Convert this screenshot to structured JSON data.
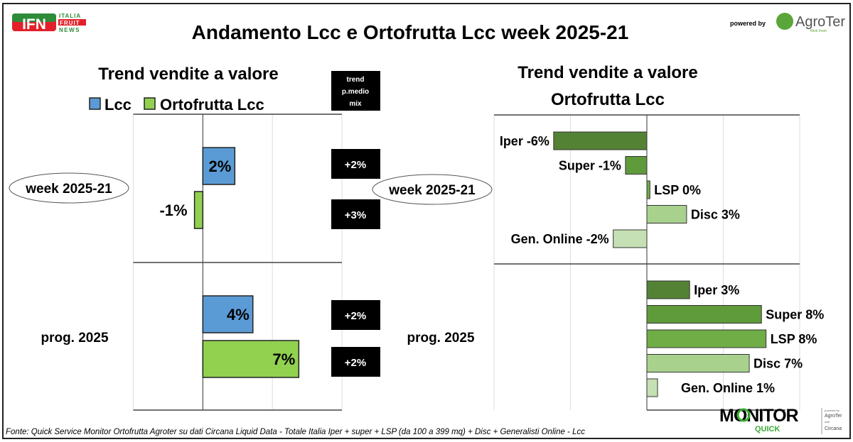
{
  "header": {
    "title": "Andamento Lcc e Ortofrutta Lcc week 2025-21",
    "logo_left": {
      "main": "IFN",
      "lines": [
        "ITALIA",
        "FRUIT",
        "NEWS"
      ]
    },
    "powered_by": "powered by",
    "logo_right": {
      "name": "AgroTer",
      "tagline": "think fresh"
    }
  },
  "footer": {
    "source": "Fonte: Quick Service Monitor Ortofrutta Agroter su dati Circana Liquid Data - Totale Italia Iper + super + LSP (da 100 a 399 mq) + Disc + Generalisti Online - Lcc",
    "logo": {
      "main": "MONITOR",
      "sub": "QUICK",
      "side": [
        "powered by",
        "AgroTer",
        "with",
        "Circana"
      ]
    }
  },
  "colors": {
    "lcc": "#5b9bd5",
    "ortofrutta": "#92d050",
    "iper": "#548235",
    "super": "#5f9a3b",
    "lsp": "#70ad47",
    "disc": "#a9d18e",
    "online": "#c5e0b4",
    "badge": "#000000"
  },
  "chart_data": [
    {
      "type": "bar",
      "orientation": "horizontal",
      "title": "Trend vendite a valore",
      "categories": [
        "week 2025-21",
        "prog. 2025"
      ],
      "xlim": [
        -5,
        10
      ],
      "grid": true,
      "legend": "top",
      "series": [
        {
          "name": "Lcc",
          "color": "#5b9bd5",
          "values": [
            2.3,
            3.6
          ],
          "labels": [
            "2%",
            "4%"
          ]
        },
        {
          "name": "Ortofrutta Lcc",
          "color": "#92d050",
          "values": [
            -0.6,
            6.9
          ],
          "labels": [
            "-1%",
            "7%"
          ]
        }
      ],
      "side_table": {
        "header": "trend p.medio mix",
        "header_lines": [
          "trend",
          "p.medio",
          "mix"
        ],
        "values": [
          [
            "+2%",
            "+3%"
          ],
          [
            "+2%",
            "+2%"
          ]
        ]
      }
    },
    {
      "type": "bar",
      "orientation": "horizontal",
      "title": "Trend vendite a valore",
      "subtitle": "Ortofrutta Lcc",
      "categories": [
        "week 2025-21",
        "prog. 2025"
      ],
      "xlim": [
        -10,
        10
      ],
      "grid": true,
      "series": [
        {
          "name": "Iper",
          "color": "#548235",
          "values": [
            -6.1,
            2.8
          ],
          "labels": [
            "Iper -6%",
            "Iper 3%"
          ]
        },
        {
          "name": "Super",
          "color": "#5f9a3b",
          "values": [
            -1.4,
            7.5
          ],
          "labels": [
            "Super -1%",
            "Super 8%"
          ]
        },
        {
          "name": "LSP",
          "color": "#70ad47",
          "values": [
            0.2,
            7.8
          ],
          "labels": [
            "LSP 0%",
            "LSP 8%"
          ]
        },
        {
          "name": "Disc",
          "color": "#a9d18e",
          "values": [
            2.6,
            6.7
          ],
          "labels": [
            "Disc 3%",
            "Disc 7%"
          ]
        },
        {
          "name": "Gen. Online",
          "color": "#c5e0b4",
          "values": [
            -2.2,
            0.7
          ],
          "labels": [
            "Gen. Online -2%",
            "Gen. Online 1%"
          ]
        }
      ]
    }
  ]
}
